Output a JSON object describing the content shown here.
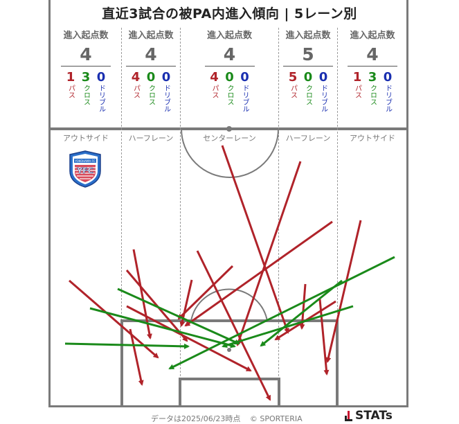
{
  "title": "直近3試合の被PA内進入傾向 | 5レーン別",
  "lanes": [
    {
      "key": "out-left",
      "header": "進入起点数",
      "total": "4",
      "pass": "1",
      "cross": "3",
      "dribble": "0",
      "name": "アウトサイド"
    },
    {
      "key": "half-left",
      "header": "進入起点数",
      "total": "4",
      "pass": "4",
      "cross": "0",
      "dribble": "0",
      "name": "ハーフレーン"
    },
    {
      "key": "center",
      "header": "進入起点数",
      "total": "4",
      "pass": "4",
      "cross": "0",
      "dribble": "0",
      "name": "センターレーン"
    },
    {
      "key": "half-right",
      "header": "進入起点数",
      "total": "5",
      "pass": "5",
      "cross": "0",
      "dribble": "0",
      "name": "ハーフレーン"
    },
    {
      "key": "out-right",
      "header": "進入起点数",
      "total": "4",
      "pass": "1",
      "cross": "3",
      "dribble": "0",
      "name": "アウトサイド"
    }
  ],
  "labels": {
    "pass": "パス",
    "cross": "クロス",
    "dribble": "ドリブル"
  },
  "colors": {
    "pass": "#b0232a",
    "cross": "#1a8a1a",
    "dribble": "#1a2fb0",
    "lines": "#7a7a7a"
  },
  "emblem": {
    "icon": "club-crest-icon",
    "letters": "YFC",
    "band": "YOKOHAMA FC"
  },
  "footer": {
    "date_text": "データは2025/06/23時点",
    "copyright": "© SPORTERIA"
  },
  "logo": {
    "text": "STATs",
    "icon": "stats-mark-icon"
  }
}
